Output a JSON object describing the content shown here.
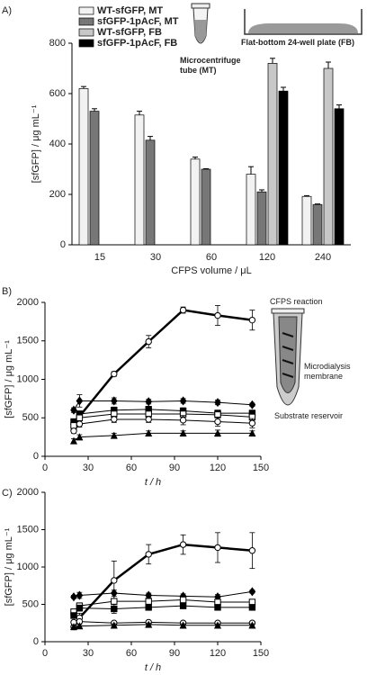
{
  "chart_data": [
    {
      "type": "bar",
      "panel": "A)",
      "categories": [
        "15",
        "30",
        "60",
        "120",
        "240"
      ],
      "series": [
        {
          "name": "WT-sfGFP, MT",
          "color": "#f2f2f2",
          "values": [
            620,
            515,
            340,
            280,
            192
          ],
          "errors": [
            8,
            15,
            8,
            30,
            3
          ]
        },
        {
          "name": "sfGFP-1pAcF, MT",
          "color": "#777777",
          "values": [
            530,
            415,
            300,
            210,
            160
          ],
          "errors": [
            10,
            15,
            2,
            8,
            2
          ]
        },
        {
          "name": "WT-sfGFP, FB",
          "color": "#c8c8c8",
          "values": [
            null,
            null,
            null,
            720,
            700
          ],
          "errors": [
            null,
            null,
            null,
            20,
            25
          ]
        },
        {
          "name": "sfGFP-1pAcF, FB",
          "color": "#000000",
          "values": [
            null,
            null,
            null,
            610,
            540
          ],
          "errors": [
            null,
            null,
            null,
            15,
            15
          ]
        }
      ],
      "ylim": [
        0,
        800
      ],
      "yticks": [
        0,
        200,
        400,
        600,
        800
      ],
      "y_label": "[sfGFP] / μg mL⁻¹",
      "x_label": "CFPS volume / μL",
      "legend": "upper left",
      "annotations": [
        "Microcentrifuge tube (MT)",
        "Flat-bottom 24-well plate (FB)"
      ]
    },
    {
      "type": "line",
      "panel": "B)",
      "x": [
        20,
        24,
        48,
        72,
        96,
        120,
        144
      ],
      "series": [
        {
          "color": "#000000",
          "marker": "circle-open",
          "width": 2.5,
          "values": [
            380,
            520,
            1070,
            1490,
            1900,
            1830,
            1770
          ],
          "errors": [
            40,
            40,
            30,
            80,
            40,
            130,
            130
          ]
        },
        {
          "color": "#000000",
          "marker": "diamond",
          "width": 1,
          "values": [
            600,
            720,
            720,
            710,
            720,
            700,
            670
          ],
          "errors": [
            30,
            80,
            40,
            30,
            30,
            30,
            20
          ]
        },
        {
          "color": "#000000",
          "marker": "square",
          "width": 1,
          "values": [
            450,
            550,
            600,
            610,
            590,
            560,
            560
          ],
          "errors": [
            30,
            40,
            40,
            40,
            40,
            40,
            40
          ]
        },
        {
          "color": "#000000",
          "marker": "square-open",
          "width": 1,
          "values": [
            400,
            500,
            550,
            550,
            550,
            540,
            510
          ],
          "errors": [
            30,
            40,
            40,
            40,
            40,
            40,
            40
          ]
        },
        {
          "color": "#000000",
          "marker": "circle-open",
          "width": 1,
          "values": [
            330,
            420,
            480,
            480,
            470,
            450,
            430
          ],
          "errors": [
            30,
            40,
            40,
            40,
            60,
            60,
            60
          ]
        },
        {
          "color": "#000000",
          "marker": "triangle",
          "width": 1,
          "values": [
            200,
            250,
            270,
            300,
            300,
            300,
            300
          ],
          "errors": [
            30,
            30,
            30,
            30,
            30,
            40,
            30
          ]
        }
      ],
      "xlim": [
        0,
        150
      ],
      "xticks": [
        0,
        30,
        60,
        90,
        120,
        150
      ],
      "ylim": [
        0,
        2000
      ],
      "yticks": [
        0,
        500,
        1000,
        1500,
        2000
      ],
      "y_label": "[sfGFP] / μg mL⁻¹",
      "x_label": "t / h",
      "annotations": [
        "CFPS reaction",
        "Microdialysis membrane",
        "Substrate reservoir"
      ]
    },
    {
      "type": "line",
      "panel": "C)",
      "x": [
        20,
        24,
        48,
        72,
        96,
        120,
        144
      ],
      "series": [
        {
          "color": "#000000",
          "marker": "circle-open",
          "width": 2.5,
          "values": [
            200,
            320,
            820,
            1170,
            1300,
            1260,
            1220
          ],
          "errors": [
            40,
            60,
            260,
            130,
            130,
            200,
            240
          ]
        },
        {
          "color": "#000000",
          "marker": "diamond",
          "width": 1,
          "values": [
            600,
            620,
            650,
            620,
            610,
            600,
            670
          ],
          "errors": [
            20,
            40,
            40,
            30,
            30,
            30,
            20
          ]
        },
        {
          "color": "#000000",
          "marker": "square-open",
          "width": 1,
          "values": [
            400,
            480,
            540,
            540,
            560,
            530,
            530
          ],
          "errors": [
            30,
            40,
            40,
            30,
            30,
            30,
            30
          ]
        },
        {
          "color": "#000000",
          "marker": "square",
          "width": 1,
          "values": [
            350,
            450,
            440,
            460,
            480,
            460,
            460
          ],
          "errors": [
            30,
            40,
            60,
            40,
            30,
            30,
            30
          ]
        },
        {
          "color": "#000000",
          "marker": "circle-open",
          "width": 1,
          "values": [
            260,
            270,
            250,
            260,
            250,
            250,
            250
          ],
          "errors": [
            20,
            20,
            20,
            20,
            20,
            20,
            20
          ]
        },
        {
          "color": "#000000",
          "marker": "triangle",
          "width": 1,
          "values": [
            200,
            210,
            220,
            230,
            220,
            220,
            220
          ],
          "errors": [
            20,
            20,
            20,
            20,
            20,
            20,
            20
          ]
        }
      ],
      "xlim": [
        0,
        150
      ],
      "xticks": [
        0,
        30,
        60,
        90,
        120,
        150
      ],
      "ylim": [
        0,
        2000
      ],
      "yticks": [
        0,
        500,
        1000,
        1500,
        2000
      ],
      "y_label": "[sfGFP] / μg mL⁻¹",
      "x_label": "t / h"
    }
  ]
}
